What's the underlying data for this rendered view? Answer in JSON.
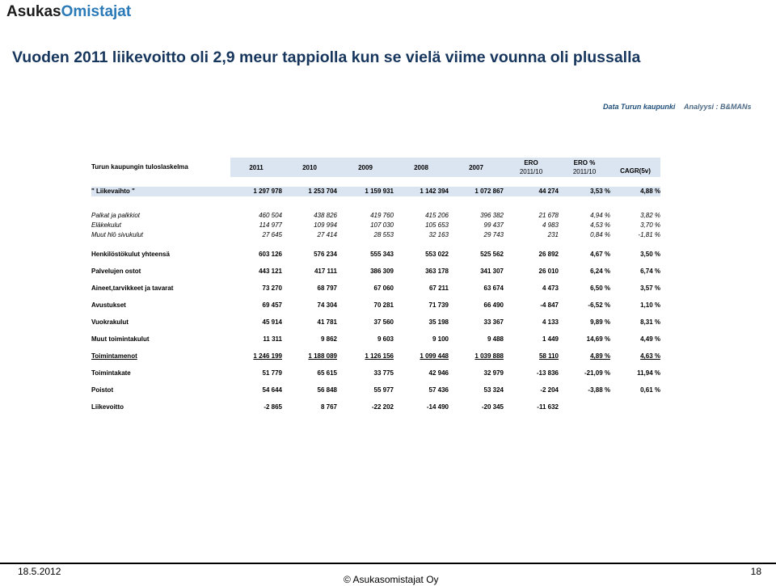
{
  "brand": {
    "part1": "Asukas",
    "part2": "Omistajat"
  },
  "title": "Vuoden 2011 liikevoitto oli 2,9 meur tappiolla kun se vielä viime vounna oli plussalla",
  "source": {
    "data": "Data Turun kaupunki",
    "analysis": "Analyysi : B&MANs"
  },
  "table": {
    "heading": "Turun kaupungin tuloslaskelma",
    "columns": [
      "2011",
      "2010",
      "2009",
      "2008",
      "2007",
      "ERO",
      "ERO %",
      "CAGR(5v)"
    ],
    "subcolumns": [
      "",
      "",
      "",
      "",
      "",
      "2011/10",
      "2011/10",
      ""
    ],
    "rows": {
      "liikevaihto": {
        "label": "\" Liikevaihto \"",
        "values": [
          "1 297 978",
          "1 253 704",
          "1 159 931",
          "1 142 394",
          "1 072 867",
          "44 274",
          "3,53 %",
          "4,88 %"
        ]
      },
      "palkat": {
        "label": "Palkat ja palkkiot",
        "values": [
          "460 504",
          "438 826",
          "419 760",
          "415 206",
          "396 382",
          "21 678",
          "4,94 %",
          "3,82 %"
        ]
      },
      "elakekulut": {
        "label": "Eläkekulut",
        "values": [
          "114 977",
          "109 994",
          "107 030",
          "105 653",
          "99 437",
          "4 983",
          "4,53 %",
          "3,70 %"
        ]
      },
      "sivukulut": {
        "label": "Muut hlö sivukulut",
        "values": [
          "27 645",
          "27 414",
          "28 553",
          "32 163",
          "29 743",
          "231",
          "0,84 %",
          "-1,81 %"
        ]
      },
      "henkilosto": {
        "label": "Henkilöstökulut yhteensä",
        "values": [
          "603 126",
          "576 234",
          "555 343",
          "553 022",
          "525 562",
          "26 892",
          "4,67 %",
          "3,50 %"
        ]
      },
      "palvelujen": {
        "label": "Palvelujen ostot",
        "values": [
          "443 121",
          "417 111",
          "386 309",
          "363 178",
          "341 307",
          "26 010",
          "6,24 %",
          "6,74 %"
        ]
      },
      "aineet": {
        "label": "Aineet,tarvikkeet ja tavarat",
        "values": [
          "73 270",
          "68 797",
          "67 060",
          "67 211",
          "63 674",
          "4 473",
          "6,50 %",
          "3,57 %"
        ]
      },
      "avustukset": {
        "label": "Avustukset",
        "values": [
          "69 457",
          "74 304",
          "70 281",
          "71 739",
          "66 490",
          "-4 847",
          "-6,52 %",
          "1,10 %"
        ]
      },
      "vuokrakulut": {
        "label": "Vuokrakulut",
        "values": [
          "45 914",
          "41 781",
          "37 560",
          "35 198",
          "33 367",
          "4 133",
          "9,89 %",
          "8,31 %"
        ]
      },
      "muut": {
        "label": "Muut toimintakulut",
        "values": [
          "11 311",
          "9 862",
          "9 603",
          "9 100",
          "9 488",
          "1 449",
          "14,69 %",
          "4,49 %"
        ]
      },
      "toimintamenot": {
        "label": "Toimintamenot",
        "values": [
          "1 246 199",
          "1 188 089",
          "1 126 156",
          "1 099 448",
          "1 039 888",
          "58 110",
          "4,89 %",
          "4,63 %"
        ]
      },
      "toimintakate": {
        "label": "Toimintakate",
        "values": [
          "51 779",
          "65 615",
          "33 775",
          "42 946",
          "32 979",
          "-13 836",
          "-21,09 %",
          "11,94 %"
        ]
      },
      "poistot": {
        "label": "Poistot",
        "values": [
          "54 644",
          "56 848",
          "55 977",
          "57 436",
          "53 324",
          "-2 204",
          "-3,88 %",
          "0,61 %"
        ]
      },
      "liikevoitto": {
        "label": "Liikevoitto",
        "values": [
          "-2 865",
          "8 767",
          "-22 202",
          "-14 490",
          "-20 345",
          "-11 632",
          "",
          ""
        ]
      }
    }
  },
  "footer": {
    "date": "18.5.2012",
    "copyright": "© Asukasomistajat Oy",
    "page": "18"
  }
}
